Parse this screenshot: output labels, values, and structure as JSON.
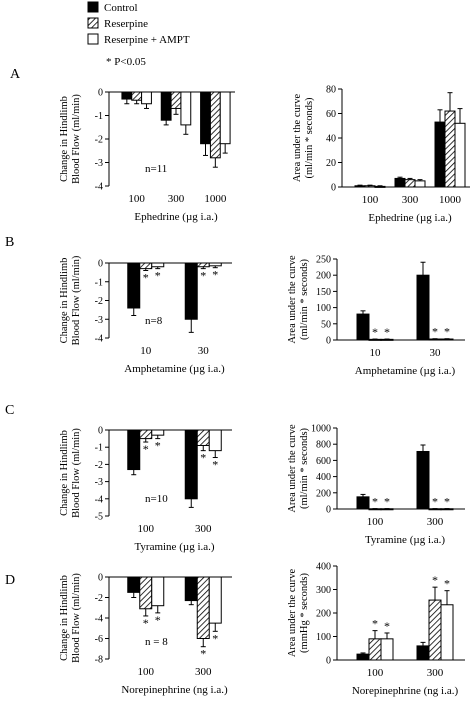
{
  "legend": {
    "items": [
      {
        "label": "Control",
        "pattern": "solid"
      },
      {
        "label": "Reserpine",
        "pattern": "hatch"
      },
      {
        "label": "Reserpine + AMPT",
        "pattern": "white"
      }
    ],
    "note": "* P<0.05"
  },
  "colors": {
    "solid": "#000000",
    "hatch": "#000000",
    "white": "#ffffff",
    "axis": "#000000"
  },
  "chart_data": [
    {
      "panel": "A",
      "side": "left",
      "type": "bar",
      "categories": [
        "100",
        "300",
        "1000"
      ],
      "xlabel": "Ephedrine (µg i.a.)",
      "ylabel": [
        "Change in Hindlimb",
        "Blood Flow (ml/min)"
      ],
      "ylim": [
        -4,
        0
      ],
      "yticks": [
        0,
        -1,
        -2,
        -3,
        -4
      ],
      "n_label": "n=11",
      "series": [
        {
          "pattern": "solid",
          "values": [
            -0.3,
            -1.2,
            -2.2
          ],
          "errors": [
            0.2,
            0.2,
            0.5
          ],
          "sig": [
            false,
            false,
            false
          ]
        },
        {
          "pattern": "hatch",
          "values": [
            -0.35,
            -0.7,
            -2.8
          ],
          "errors": [
            0.15,
            0.25,
            0.4
          ],
          "sig": [
            false,
            false,
            false
          ]
        },
        {
          "pattern": "white",
          "values": [
            -0.5,
            -1.4,
            -2.2
          ],
          "errors": [
            0.2,
            0.4,
            0.4
          ],
          "sig": [
            false,
            false,
            false
          ]
        }
      ]
    },
    {
      "panel": "A",
      "side": "right",
      "type": "bar",
      "categories": [
        "100",
        "300",
        "1000"
      ],
      "xlabel": "Ephedrine (µg i.a.)",
      "ylabel": [
        "Area under the curve",
        "(ml/min * seconds)"
      ],
      "ylim": [
        0,
        80
      ],
      "yticks": [
        0,
        20,
        40,
        60,
        80
      ],
      "series": [
        {
          "pattern": "solid",
          "values": [
            1,
            7,
            53
          ],
          "errors": [
            0.5,
            1,
            10
          ],
          "sig": [
            false,
            false,
            false
          ]
        },
        {
          "pattern": "hatch",
          "values": [
            1,
            6,
            62
          ],
          "errors": [
            0.5,
            1,
            15
          ],
          "sig": [
            false,
            false,
            false
          ]
        },
        {
          "pattern": "white",
          "values": [
            0.5,
            5,
            52
          ],
          "errors": [
            0.5,
            1,
            12
          ],
          "sig": [
            false,
            false,
            false
          ]
        }
      ]
    },
    {
      "panel": "B",
      "side": "left",
      "type": "bar",
      "categories": [
        "10",
        "30"
      ],
      "xlabel": "Amphetamine (µg i.a.)",
      "ylabel": [
        "Change in Hindlimb",
        "Blood Flow (ml/min)"
      ],
      "ylim": [
        -4,
        0
      ],
      "yticks": [
        0,
        -1,
        -2,
        -3,
        -4
      ],
      "n_label": "n=8",
      "series": [
        {
          "pattern": "solid",
          "values": [
            -2.4,
            -3.0
          ],
          "errors": [
            0.4,
            0.7
          ],
          "sig": [
            false,
            false
          ]
        },
        {
          "pattern": "hatch",
          "values": [
            -0.3,
            -0.2
          ],
          "errors": [
            0.1,
            0.1
          ],
          "sig": [
            true,
            true
          ]
        },
        {
          "pattern": "white",
          "values": [
            -0.2,
            -0.15
          ],
          "errors": [
            0.1,
            0.1
          ],
          "sig": [
            true,
            true
          ]
        }
      ]
    },
    {
      "panel": "B",
      "side": "right",
      "type": "bar",
      "categories": [
        "10",
        "30"
      ],
      "xlabel": "Amphetamine (µg i.a.)",
      "ylabel": [
        "Area under the curve",
        "(ml/min * seconds)"
      ],
      "ylim": [
        0,
        250
      ],
      "yticks": [
        0,
        50,
        100,
        150,
        200,
        250
      ],
      "series": [
        {
          "pattern": "solid",
          "values": [
            80,
            200
          ],
          "errors": [
            10,
            40
          ],
          "sig": [
            false,
            false
          ]
        },
        {
          "pattern": "hatch",
          "values": [
            2,
            3
          ],
          "errors": [
            1,
            1
          ],
          "sig": [
            true,
            true
          ]
        },
        {
          "pattern": "white",
          "values": [
            2,
            3
          ],
          "errors": [
            1,
            1
          ],
          "sig": [
            true,
            true
          ]
        }
      ]
    },
    {
      "panel": "C",
      "side": "left",
      "type": "bar",
      "categories": [
        "100",
        "300"
      ],
      "xlabel": "Tyramine (µg i.a.)",
      "ylabel": [
        "Change in Hindlimb",
        "Blood Flow (ml/min)"
      ],
      "ylim": [
        -5,
        0
      ],
      "yticks": [
        0,
        -1,
        -2,
        -3,
        -4,
        -5
      ],
      "n_label": "n=10",
      "series": [
        {
          "pattern": "solid",
          "values": [
            -2.3,
            -4.0
          ],
          "errors": [
            0.3,
            0.5
          ],
          "sig": [
            false,
            false
          ]
        },
        {
          "pattern": "hatch",
          "values": [
            -0.5,
            -0.9
          ],
          "errors": [
            0.2,
            0.3
          ],
          "sig": [
            true,
            true
          ]
        },
        {
          "pattern": "white",
          "values": [
            -0.3,
            -1.2
          ],
          "errors": [
            0.2,
            0.4
          ],
          "sig": [
            true,
            true
          ]
        }
      ]
    },
    {
      "panel": "C",
      "side": "right",
      "type": "bar",
      "categories": [
        "100",
        "300"
      ],
      "xlabel": "Tyramine (µg i.a.)",
      "ylabel": [
        "Area under the curve",
        "(ml/min * seconds)"
      ],
      "ylim": [
        0,
        1000
      ],
      "yticks": [
        0,
        200,
        400,
        600,
        800,
        1000
      ],
      "series": [
        {
          "pattern": "solid",
          "values": [
            150,
            710
          ],
          "errors": [
            30,
            80
          ],
          "sig": [
            false,
            false
          ]
        },
        {
          "pattern": "hatch",
          "values": [
            3,
            3
          ],
          "errors": [
            2,
            2
          ],
          "sig": [
            true,
            true
          ]
        },
        {
          "pattern": "white",
          "values": [
            3,
            3
          ],
          "errors": [
            2,
            2
          ],
          "sig": [
            true,
            true
          ]
        }
      ]
    },
    {
      "panel": "D",
      "side": "left",
      "type": "bar",
      "categories": [
        "100",
        "300"
      ],
      "xlabel": "Norepinephrine (ng i.a.)",
      "ylabel": [
        "Change in Hindlimb",
        "Blood Flow (ml/min)"
      ],
      "ylim": [
        -8,
        0
      ],
      "yticks": [
        0,
        -2,
        -4,
        -6,
        -8
      ],
      "n_label": "n = 8",
      "series": [
        {
          "pattern": "solid",
          "values": [
            -1.5,
            -2.3
          ],
          "errors": [
            0.5,
            0.4
          ],
          "sig": [
            false,
            false
          ]
        },
        {
          "pattern": "hatch",
          "values": [
            -3.1,
            -6.0
          ],
          "errors": [
            0.7,
            0.8
          ],
          "sig": [
            true,
            true
          ]
        },
        {
          "pattern": "white",
          "values": [
            -2.8,
            -4.5
          ],
          "errors": [
            0.7,
            0.8
          ],
          "sig": [
            true,
            true
          ]
        }
      ]
    },
    {
      "panel": "D",
      "side": "right",
      "type": "bar",
      "categories": [
        "100",
        "300"
      ],
      "xlabel": "Norepinephrine (ng i.a.)",
      "ylabel": [
        "Area under the curve",
        "(mmHg * seconds)"
      ],
      "ylim": [
        0,
        400
      ],
      "yticks": [
        0,
        100,
        200,
        300,
        400
      ],
      "series": [
        {
          "pattern": "solid",
          "values": [
            25,
            60
          ],
          "errors": [
            5,
            15
          ],
          "sig": [
            false,
            false
          ]
        },
        {
          "pattern": "hatch",
          "values": [
            90,
            255
          ],
          "errors": [
            35,
            55
          ],
          "sig": [
            true,
            true
          ]
        },
        {
          "pattern": "white",
          "values": [
            90,
            235
          ],
          "errors": [
            25,
            60
          ],
          "sig": [
            true,
            true
          ]
        }
      ]
    }
  ]
}
